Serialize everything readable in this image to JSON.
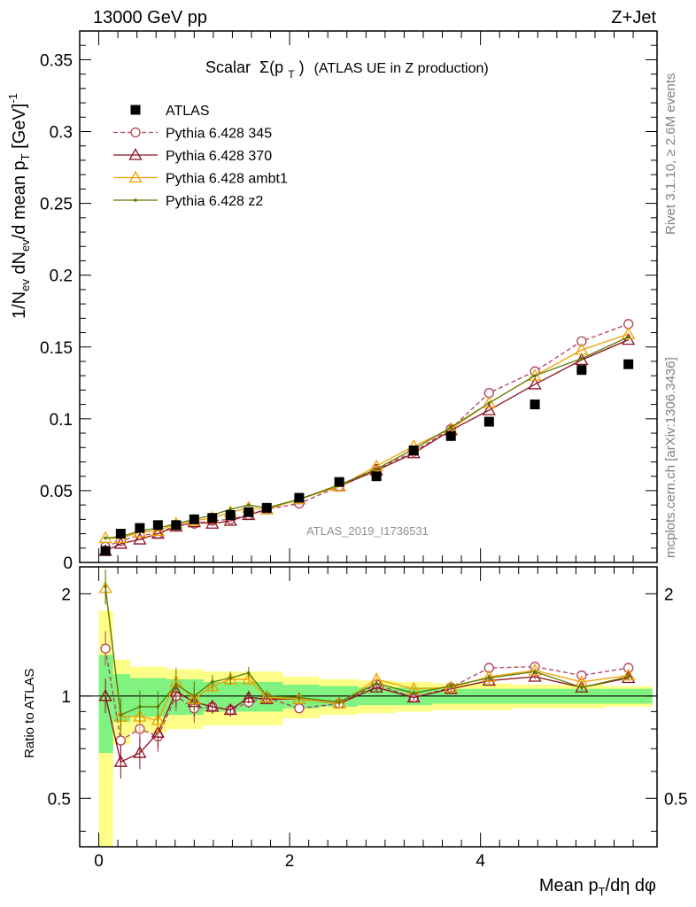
{
  "header": {
    "left": "13000 GeV pp",
    "right": "Z+Jet"
  },
  "side": {
    "rivet": "Rivet 3.1.10, ≥ 2.6M events",
    "mcplots": "mcplots.cern.ch [arXiv:1306.3436]"
  },
  "chart_data": [
    {
      "type": "scatter",
      "title_prefix": "Scalar",
      "title_sigma": "Σ(p",
      "title_sub": "T",
      "title_close": ")",
      "title_rest": "(ATLAS UE in Z production)",
      "watermark": "ATLAS_2019_I1736531",
      "ylabel": "1/N_ev dN_ev/d mean p_T [GeV]^-1",
      "ylim": [
        0,
        0.37
      ],
      "xlim": [
        -0.2,
        5.85
      ],
      "yticks": [
        "0",
        "0.05",
        "0.1",
        "0.15",
        "0.2",
        "0.25",
        "0.3",
        "0.35"
      ],
      "ytick_values": [
        0,
        0.05,
        0.1,
        0.15,
        0.2,
        0.25,
        0.3,
        0.35
      ],
      "x": [
        0.07,
        0.23,
        0.43,
        0.62,
        0.81,
        1.0,
        1.19,
        1.38,
        1.57,
        1.76,
        2.1,
        2.52,
        2.91,
        3.3,
        3.69,
        4.09,
        4.57,
        5.06,
        5.55
      ],
      "series": [
        {
          "name": "ATLAS",
          "color": "#000000",
          "marker": "square",
          "values": [
            0.008,
            0.02,
            0.024,
            0.026,
            0.026,
            0.03,
            0.031,
            0.033,
            0.035,
            0.038,
            0.045,
            0.056,
            0.06,
            0.078,
            0.088,
            0.098,
            0.11,
            0.134,
            0.138
          ]
        },
        {
          "name": "Pythia 6.428 345",
          "color": "#b0405a",
          "marker": "circle-open",
          "dash": "5,3",
          "values": [
            0.011,
            0.015,
            0.019,
            0.02,
            0.026,
            0.027,
            0.029,
            0.03,
            0.033,
            0.037,
            0.041,
            0.053,
            0.065,
            0.077,
            0.093,
            0.118,
            0.133,
            0.154,
            0.166
          ]
        },
        {
          "name": "Pythia 6.428 370",
          "color": "#8c1020",
          "marker": "triangle-open",
          "values": [
            0.008,
            0.013,
            0.016,
            0.02,
            0.025,
            0.028,
            0.027,
            0.029,
            0.033,
            0.037,
            0.044,
            0.053,
            0.064,
            0.076,
            0.092,
            0.106,
            0.124,
            0.141,
            0.155
          ]
        },
        {
          "name": "Pythia 6.428 ambt1",
          "color": "#f0a000",
          "marker": "triangle-open",
          "values": [
            0.017,
            0.017,
            0.021,
            0.022,
            0.027,
            0.029,
            0.031,
            0.035,
            0.038,
            0.037,
            0.044,
            0.053,
            0.067,
            0.081,
            0.093,
            0.111,
            0.13,
            0.148,
            0.159
          ]
        },
        {
          "name": "Pythia 6.428 z2",
          "color": "#5a7a00",
          "marker": "dot",
          "values": [
            0.017,
            0.018,
            0.022,
            0.024,
            0.027,
            0.03,
            0.033,
            0.037,
            0.04,
            0.038,
            0.044,
            0.054,
            0.065,
            0.079,
            0.094,
            0.111,
            0.13,
            0.142,
            0.157
          ]
        }
      ]
    },
    {
      "type": "scatter",
      "ylabel": "Ratio to ATLAS",
      "xlabel": "Mean p_T/dη dφ",
      "log_y": true,
      "ylim": [
        0.36,
        2.4
      ],
      "yticks": [
        "0.5",
        "1",
        "2"
      ],
      "ytick_values": [
        0.5,
        1,
        2
      ],
      "xticks": [
        "0",
        "2",
        "4"
      ],
      "xtick_values": [
        0,
        2,
        4
      ],
      "band_inner": [
        0.32,
        0.16,
        0.13,
        0.13,
        0.12,
        0.12,
        0.1,
        0.1,
        0.1,
        0.1,
        0.08,
        0.07,
        0.06,
        0.06,
        0.05,
        0.05,
        0.05,
        0.05,
        0.05
      ],
      "band_outer": [
        0.78,
        0.28,
        0.22,
        0.22,
        0.2,
        0.2,
        0.18,
        0.18,
        0.18,
        0.18,
        0.14,
        0.12,
        0.11,
        0.1,
        0.09,
        0.09,
        0.08,
        0.08,
        0.07
      ],
      "band_inner_color": "#7ff27f",
      "band_outer_color": "#fdfd88",
      "series": [
        {
          "name": "Pythia 6.428 345",
          "color": "#b0405a",
          "dash": "5,3",
          "marker": "circle-open",
          "values": [
            1.38,
            0.74,
            0.8,
            0.76,
            1.0,
            0.92,
            0.93,
            0.91,
            0.96,
            0.99,
            0.92,
            0.95,
            1.08,
            0.99,
            1.06,
            1.21,
            1.22,
            1.15,
            1.21
          ]
        },
        {
          "name": "Pythia 6.428 370",
          "color": "#8c1020",
          "marker": "triangle-open",
          "values": [
            1.0,
            0.64,
            0.68,
            0.78,
            1.03,
            0.96,
            0.93,
            0.91,
            0.99,
            0.98,
            0.98,
            0.95,
            1.06,
            0.99,
            1.05,
            1.11,
            1.14,
            1.06,
            1.13
          ]
        },
        {
          "name": "Pythia 6.428 ambt1",
          "color": "#f0a000",
          "marker": "triangle-open",
          "values": [
            2.08,
            0.87,
            0.87,
            0.85,
            1.1,
            0.98,
            1.07,
            1.12,
            1.12,
            0.99,
            0.98,
            0.95,
            1.12,
            1.05,
            1.06,
            1.14,
            1.19,
            1.1,
            1.15
          ]
        },
        {
          "name": "Pythia 6.428 z2",
          "color": "#5a7a00",
          "marker": "dot",
          "values": [
            2.1,
            0.88,
            0.93,
            0.93,
            1.08,
            1.0,
            1.1,
            1.13,
            1.17,
            1.0,
            0.99,
            0.96,
            1.09,
            1.02,
            1.07,
            1.13,
            1.18,
            1.06,
            1.14
          ]
        }
      ]
    }
  ]
}
